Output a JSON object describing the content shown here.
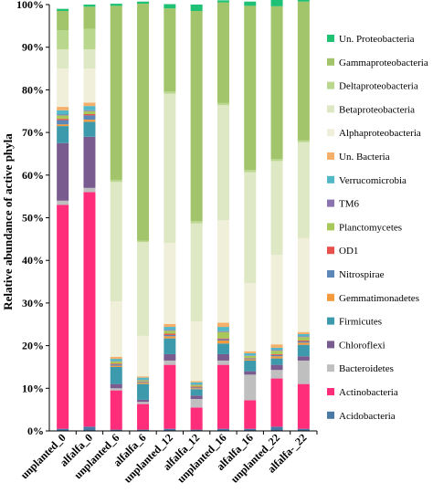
{
  "chart_data": {
    "type": "bar",
    "stacked": true,
    "ylabel": "Relative abundance of active phyla",
    "ylim": [
      0,
      100
    ],
    "yticks": [
      "0%",
      "10%",
      "20%",
      "30%",
      "40%",
      "50%",
      "60%",
      "70%",
      "80%",
      "90%",
      "100%"
    ],
    "categories": [
      "unplanted_0",
      "alfalfa_0",
      "unplanted_6",
      "alfalfa_6",
      "unplanted_12",
      "alfalfa_12",
      "unplanted_16",
      "alfalfa_16",
      "unplanted_22",
      "alfalfa-_22"
    ],
    "legend_position": "right",
    "series": [
      {
        "name": "Acidobacteria",
        "color": "#4a79a5",
        "values": [
          0.5,
          1,
          0.3,
          0.3,
          0.5,
          0.3,
          0.5,
          0.5,
          1,
          0.5
        ]
      },
      {
        "name": "Actinobacteria",
        "color": "#ff2d7a",
        "values": [
          52.5,
          55,
          9.2,
          6,
          15,
          5.2,
          15,
          6.7,
          11.3,
          10.5
        ]
      },
      {
        "name": "Bacteroidetes",
        "color": "#bfbfbf",
        "values": [
          1,
          1,
          0.5,
          0.5,
          1,
          2,
          1,
          6,
          2,
          5.5
        ]
      },
      {
        "name": "Chloroflexi",
        "color": "#7a5b8f",
        "values": [
          13.5,
          12,
          1,
          0.5,
          1.5,
          0.8,
          1.5,
          0.8,
          1.2,
          1
        ]
      },
      {
        "name": "Firmicutes",
        "color": "#3d9aad",
        "values": [
          4,
          3.5,
          4,
          3.7,
          3.7,
          1.5,
          2.5,
          2.5,
          1.5,
          2.7
        ]
      },
      {
        "name": "Gemmatimonadetes",
        "color": "#f29a3c",
        "values": [
          0.4,
          0.5,
          0.3,
          0.3,
          0.5,
          0.2,
          0.7,
          0.3,
          0.5,
          0.5
        ]
      },
      {
        "name": "Nitrospirae",
        "color": "#5b88b8",
        "values": [
          1,
          1,
          0.3,
          0.2,
          0.3,
          0.2,
          0.3,
          0.2,
          0.3,
          0.3
        ]
      },
      {
        "name": "OD1",
        "color": "#e8504a",
        "values": [
          0.3,
          0.3,
          0.2,
          0.1,
          0.3,
          0.2,
          0.2,
          0.1,
          0.2,
          0.2
        ]
      },
      {
        "name": "Planctomycetes",
        "color": "#a8c95a",
        "values": [
          0.8,
          0.7,
          0.5,
          0.3,
          0.7,
          0.4,
          1.5,
          0.5,
          0.8,
          0.8
        ]
      },
      {
        "name": "TM6",
        "color": "#8a74b0",
        "values": [
          0.2,
          0.2,
          0.1,
          0.1,
          0.2,
          0.1,
          0.2,
          0.1,
          0.2,
          0.2
        ]
      },
      {
        "name": "Verrucomicrobia",
        "color": "#52b8c8",
        "values": [
          1,
          1,
          0.5,
          0.5,
          0.7,
          0.5,
          1,
          0.5,
          0.5,
          0.5
        ]
      },
      {
        "name": "Un. Bacteria",
        "color": "#f4b06a",
        "values": [
          0.8,
          0.8,
          0.5,
          0.3,
          0.7,
          0.3,
          1,
          0.5,
          0.8,
          0.5
        ]
      },
      {
        "name": "Alphaproteobacteria",
        "color": "#f0f0da",
        "values": [
          9,
          8,
          13,
          9.5,
          19,
          14,
          24,
          16,
          21,
          22
        ]
      },
      {
        "name": "Betaproteobacteria",
        "color": "#dfe8c4",
        "values": [
          4.5,
          4.5,
          28,
          22,
          35,
          23,
          27,
          26,
          22,
          22.5
        ]
      },
      {
        "name": "Deltaproteobacteria",
        "color": "#b9d88e",
        "values": [
          4.5,
          4.8,
          0.5,
          0.3,
          0.5,
          0.5,
          0.5,
          0.5,
          0.5,
          0.5
        ]
      },
      {
        "name": "Gammaproteobacteria",
        "color": "#a2c46a",
        "values": [
          4.5,
          5.2,
          40.8,
          55.6,
          19.5,
          49.3,
          23.6,
          38.5,
          35.8,
          32.5
        ]
      },
      {
        "name": "Un. Proteobacteria",
        "color": "#1fc174",
        "values": [
          0.5,
          0.5,
          0.5,
          0.5,
          1,
          1.5,
          0.5,
          1,
          2,
          0.8
        ]
      }
    ]
  }
}
